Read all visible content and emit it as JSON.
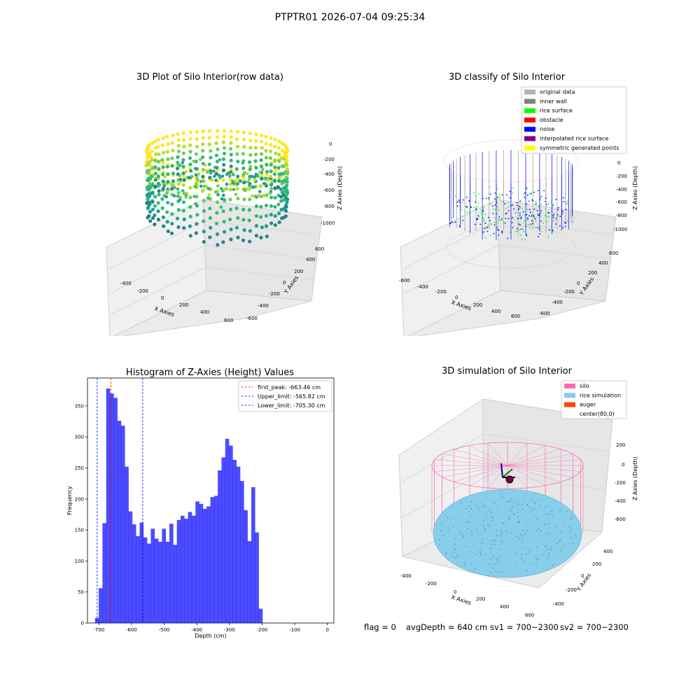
{
  "figure": {
    "suptitle": "PTPTR01 2026-07-04 09:25:34"
  },
  "panels": {
    "raw": {
      "title": "3D Plot of Silo Interior(row data)",
      "xlabel": "X Axies",
      "ylabel": "Y Axies",
      "zlabel": "Z Axies (Depth)",
      "xticks": [
        "-400",
        "-200",
        "0",
        "200",
        "400",
        "600"
      ],
      "yticks": [
        "600",
        "400",
        "200",
        "0",
        "-200",
        "-400",
        "-600"
      ],
      "zticks": [
        "0",
        "-200",
        "-400",
        "-600",
        "-800",
        "-1000"
      ]
    },
    "classify": {
      "title": "3D classify of Silo Interior",
      "xlabel": "X Axies",
      "ylabel": "Y Axies",
      "zlabel": "Z Axies (Depth)",
      "xticks": [
        "-600",
        "-400",
        "-200",
        "0",
        "200",
        "400",
        "600"
      ],
      "yticks": [
        "600",
        "400",
        "200",
        "0",
        "-200",
        "-400",
        "-600"
      ],
      "zticks": [
        "0",
        "-200",
        "-400",
        "-600",
        "-800",
        "-1000"
      ],
      "legend": [
        {
          "label": "original data",
          "color": "#b3b3b3"
        },
        {
          "label": "inner wall",
          "color": "#808080"
        },
        {
          "label": "rice surface",
          "color": "#00ff00"
        },
        {
          "label": "obstacle",
          "color": "#ff0000"
        },
        {
          "label": "noise",
          "color": "#0000ff"
        },
        {
          "label": "interpolated rice surface",
          "color": "#800080"
        },
        {
          "label": "symmetric generated points",
          "color": "#ffff00"
        }
      ]
    },
    "sim": {
      "title": "3D simulation of Silo Interior",
      "xlabel": "X Axies",
      "ylabel": "Y Axies",
      "zlabel": "Z Axies (Depth)",
      "xticks": [
        "-400",
        "-200",
        "0",
        "200",
        "400",
        "600"
      ],
      "yticks": [
        "400",
        "200",
        "0",
        "-200",
        "-400"
      ],
      "zticks": [
        "200",
        "0",
        "-200",
        "-400",
        "-600"
      ],
      "legend": [
        {
          "label": "silo",
          "color": "#ff69b4"
        },
        {
          "label": "rice simulation",
          "color": "#87ceeb"
        },
        {
          "label": "auger",
          "color": "#ff4500"
        },
        {
          "label": "center(80,0)",
          "color": ""
        }
      ]
    }
  },
  "info": {
    "flag": "flag = 0",
    "avg": "avgDepth = 640 cm",
    "sv1": "sv1 = 700~2300",
    "sv2": "sv2 = 700~2300"
  },
  "chart_data": {
    "type": "bar",
    "title": "Histogram of Z-Axies (Height) Values",
    "xlabel": "Depth (cm)",
    "ylabel": "Frequency",
    "xlim": [
      -735,
      20
    ],
    "ylim": [
      0,
      395
    ],
    "xticks": [
      -700,
      -600,
      -500,
      -400,
      -300,
      -200,
      -100,
      0
    ],
    "yticks": [
      0,
      50,
      100,
      150,
      200,
      250,
      300,
      350
    ],
    "bar_color": "#0000ff",
    "bins": {
      "start": -712,
      "width": 11.4,
      "counts": [
        8,
        56,
        161,
        378,
        370,
        363,
        326,
        318,
        252,
        180,
        159,
        140,
        162,
        138,
        128,
        152,
        136,
        131,
        152,
        131,
        160,
        126,
        166,
        173,
        168,
        179,
        173,
        196,
        192,
        184,
        188,
        203,
        205,
        246,
        267,
        297,
        286,
        263,
        252,
        229,
        182,
        132,
        219,
        146,
        23
      ]
    },
    "vlines": [
      {
        "label": "first_peak: -663.46 cm",
        "x": -663.46,
        "color": "#ff0000"
      },
      {
        "label": "Upper_limit: -565.82 cm",
        "x": -565.82,
        "color": "#0000ff"
      },
      {
        "label": "Lower_limit: -705.30 cm",
        "x": -705.3,
        "color": "#0000ff"
      }
    ]
  }
}
